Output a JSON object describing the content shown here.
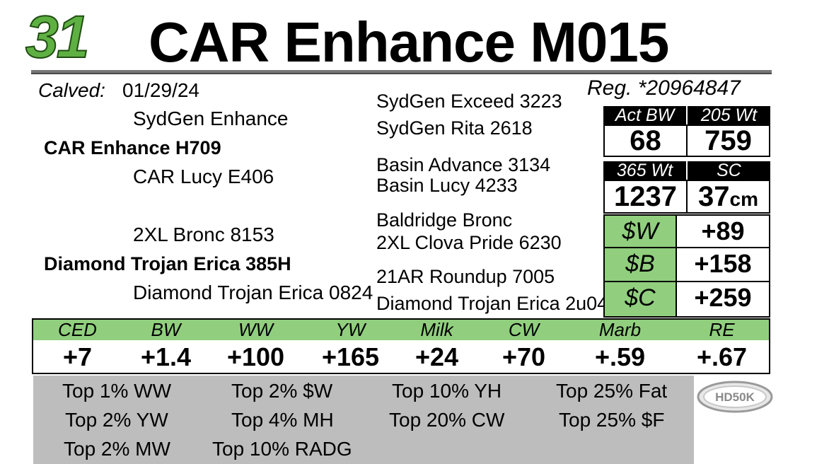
{
  "header": {
    "lot_number": "31",
    "title": "CAR Enhance M015"
  },
  "info": {
    "calved_label": "Calved:",
    "calved_date": "01/29/24",
    "reg": "Reg. *20964847"
  },
  "pedigree": {
    "sire": "CAR Enhance H709",
    "sire_sire": "SydGen Enhance",
    "sire_sire_sire": "SydGen Exceed 3223",
    "sire_sire_dam": "SydGen Rita 2618",
    "sire_dam": "CAR Lucy E406",
    "sire_dam_sire": "Basin Advance 3134",
    "sire_dam_dam": "Basin Lucy 4233",
    "dam": "Diamond Trojan Erica 385H",
    "dam_sire": "2XL Bronc 8153",
    "dam_sire_sire": "Baldridge Bronc",
    "dam_sire_dam": "2XL Clova Pride 6230",
    "dam_dam": "Diamond Trojan Erica 0824",
    "dam_dam_sire": "21AR Roundup 7005",
    "dam_dam_dam": "Diamond Trojan Erica 2u04"
  },
  "stats": {
    "act_bw_label": "Act BW",
    "act_bw": "68",
    "wt205_label": "205 Wt",
    "wt205": "759",
    "wt365_label": "365 Wt",
    "wt365": "1237",
    "sc_label": "SC",
    "sc": "37",
    "sc_unit": "cm"
  },
  "dollar_indexes": [
    {
      "label": "$W",
      "value": "+89"
    },
    {
      "label": "$B",
      "value": "+158"
    },
    {
      "label": "$C",
      "value": "+259"
    }
  ],
  "epds": [
    {
      "label": "CED",
      "value": "+7"
    },
    {
      "label": "BW",
      "value": "+1.4"
    },
    {
      "label": "WW",
      "value": "+100"
    },
    {
      "label": "YW",
      "value": "+165"
    },
    {
      "label": "Milk",
      "value": "+24"
    },
    {
      "label": "CW",
      "value": "+70"
    },
    {
      "label": "Marb",
      "value": "+.59"
    },
    {
      "label": "RE",
      "value": "+.67"
    }
  ],
  "percentiles": [
    "Top 1% WW",
    "Top 2% $W",
    "Top 10% YH",
    "Top 25% Fat",
    "Top 2% YW",
    "Top 4% MH",
    "Top 20% CW",
    "Top 25% $F",
    "Top 2% MW",
    "Top 10% RADG"
  ],
  "logo": {
    "text": "HD50K",
    "icon": "hd50k-logo-icon"
  },
  "colors": {
    "green": "#91cf7e",
    "lot_green": "#5fb043",
    "gray": "#bdbdbd"
  }
}
